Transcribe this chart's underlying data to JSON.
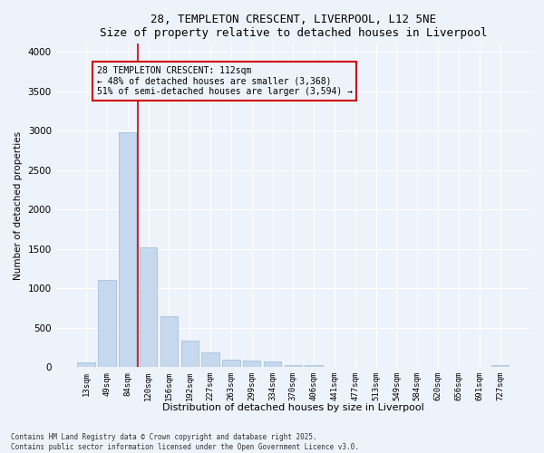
{
  "title_line1": "28, TEMPLETON CRESCENT, LIVERPOOL, L12 5NE",
  "title_line2": "Size of property relative to detached houses in Liverpool",
  "xlabel": "Distribution of detached houses by size in Liverpool",
  "ylabel": "Number of detached properties",
  "categories": [
    "13sqm",
    "49sqm",
    "84sqm",
    "120sqm",
    "156sqm",
    "192sqm",
    "227sqm",
    "263sqm",
    "299sqm",
    "334sqm",
    "370sqm",
    "406sqm",
    "441sqm",
    "477sqm",
    "513sqm",
    "549sqm",
    "584sqm",
    "620sqm",
    "656sqm",
    "691sqm",
    "727sqm"
  ],
  "values": [
    55,
    1100,
    2980,
    1520,
    650,
    340,
    185,
    90,
    85,
    65,
    30,
    30,
    0,
    0,
    0,
    0,
    0,
    0,
    0,
    0,
    20
  ],
  "bar_color": "#c5d8ed",
  "bar_edge_color": "#9bbcd8",
  "vline_color": "#cc0000",
  "annotation_title": "28 TEMPLETON CRESCENT: 112sqm",
  "annotation_line2": "← 48% of detached houses are smaller (3,368)",
  "annotation_line3": "51% of semi-detached houses are larger (3,594) →",
  "annotation_box_edgecolor": "#cc0000",
  "ylim": [
    0,
    4100
  ],
  "yticks": [
    0,
    500,
    1000,
    1500,
    2000,
    2500,
    3000,
    3500,
    4000
  ],
  "background_color": "#eef2fa",
  "grid_color": "#ffffff",
  "footnote_line1": "Contains HM Land Registry data © Crown copyright and database right 2025.",
  "footnote_line2": "Contains public sector information licensed under the Open Government Licence v3.0."
}
